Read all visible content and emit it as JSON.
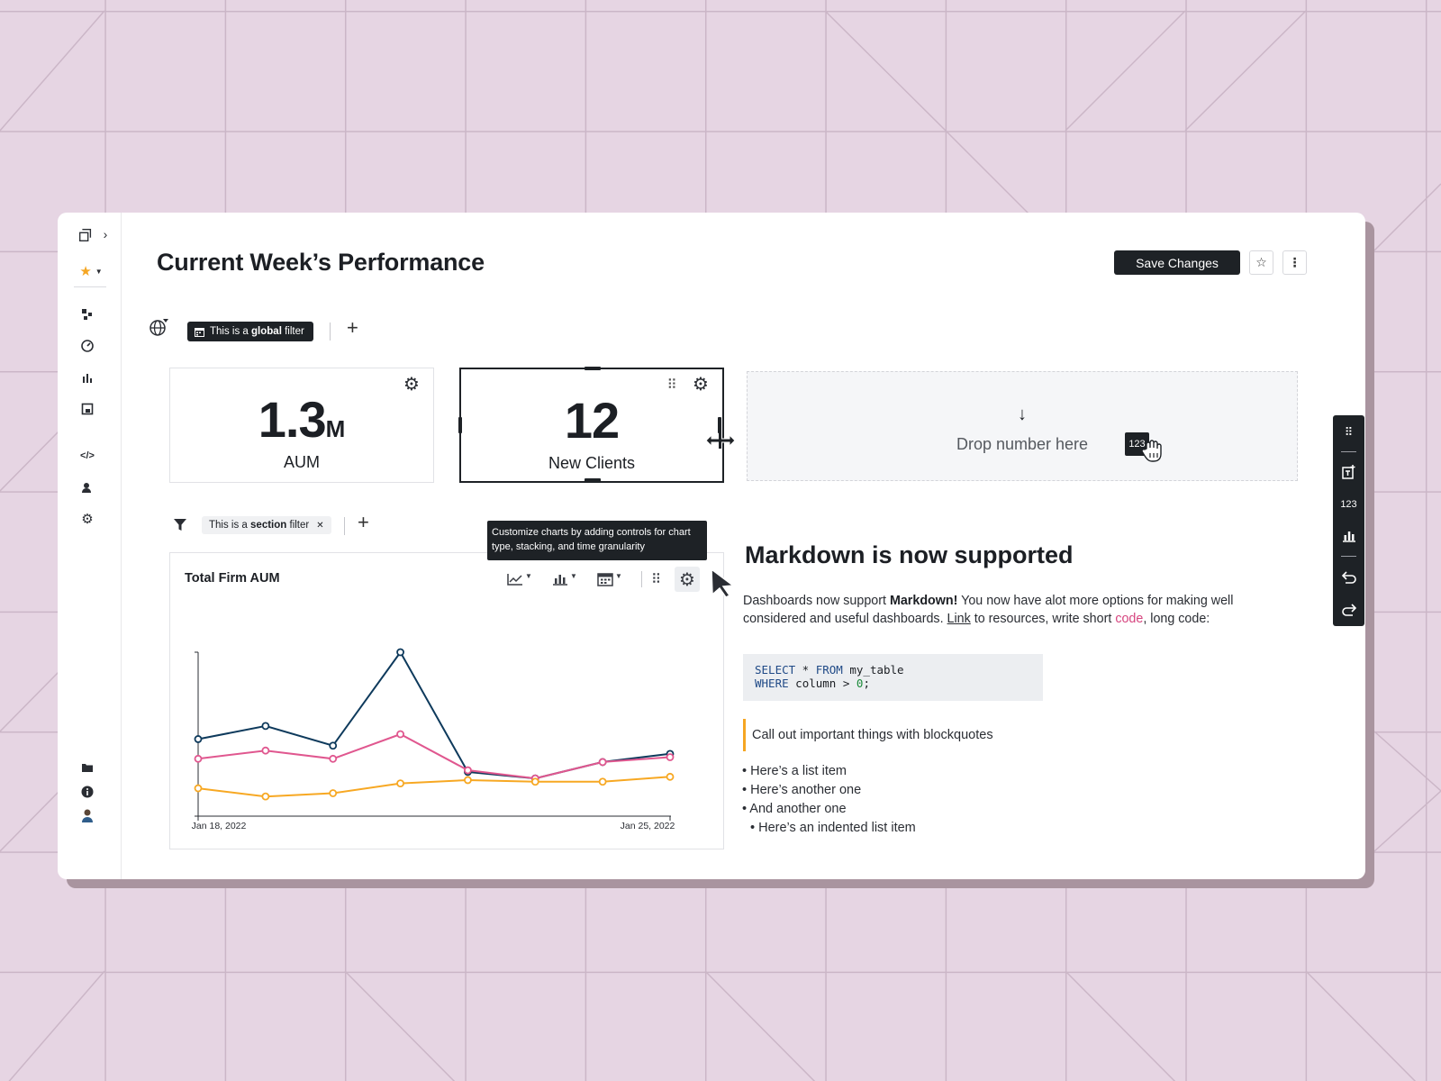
{
  "header": {
    "title": "Current Week’s Performance",
    "save_label": "Save Changes"
  },
  "global_filter": {
    "prefix": "This is a",
    "bold": "global",
    "suffix": "filter"
  },
  "kpis": [
    {
      "value": "1.3",
      "unit": "M",
      "label": "AUM"
    },
    {
      "value": "12",
      "unit": "",
      "label": "New Clients"
    }
  ],
  "drop_zone": {
    "text": "Drop number here",
    "badge": "123"
  },
  "section_filter": {
    "prefix": "This is a",
    "bold": "section",
    "suffix": "filter",
    "remove": "✕"
  },
  "tooltip": "Customize charts by adding controls for chart type, stacking, and time granularity",
  "chart": {
    "title": "Total Firm AUM",
    "x_start_label": "Jan 18, 2022",
    "x_end_label": "Jan 25, 2022"
  },
  "chart_data": {
    "type": "line",
    "title": "Total Firm AUM",
    "x": [
      "Jan 18, 2022",
      "",
      "",
      "",
      "",
      "",
      "",
      "Jan 25, 2022"
    ],
    "series": [
      {
        "color": "#0e3a5c",
        "values": [
          47,
          55,
          43,
          100,
          27,
          23,
          33,
          38
        ]
      },
      {
        "color": "#e0578f",
        "values": [
          35,
          40,
          35,
          50,
          28,
          23,
          33,
          36
        ]
      },
      {
        "color": "#f7a823",
        "values": [
          17,
          12,
          14,
          20,
          22,
          21,
          21,
          24
        ]
      }
    ],
    "grid": false,
    "legend": "none"
  },
  "markdown": {
    "heading": "Markdown is now supported",
    "p_pre": "Dashboards now support",
    "p_bold": "Markdown!",
    "p_mid": "You now have alot more options for making well considered and useful dashboards.",
    "p_link": "Link",
    "p_mid2": "to resources, write short",
    "p_code": "code",
    "p_end": ", long code:",
    "code_line1_kw1": "SELECT",
    "code_line1_rest1": " * ",
    "code_line1_kw2": "FROM",
    "code_line1_rest2": " my_table",
    "code_line2_kw": "WHERE",
    "code_line2_rest": " column > ",
    "code_line2_num": "0",
    "code_line2_end": ";",
    "blockquote": "Call out important things with blockquotes",
    "list": [
      "• Here’s a list item",
      "• Here’s another one",
      "• And another one",
      "• Here’s an indented list item"
    ]
  },
  "right_toolbar": {
    "number_label": "123"
  },
  "colors": {
    "accent_dark": "#1e2226",
    "star": "#f5a623",
    "series_navy": "#0e3a5c",
    "series_pink": "#e0578f",
    "series_orange": "#f7a823",
    "background": "#e6d5e3"
  }
}
